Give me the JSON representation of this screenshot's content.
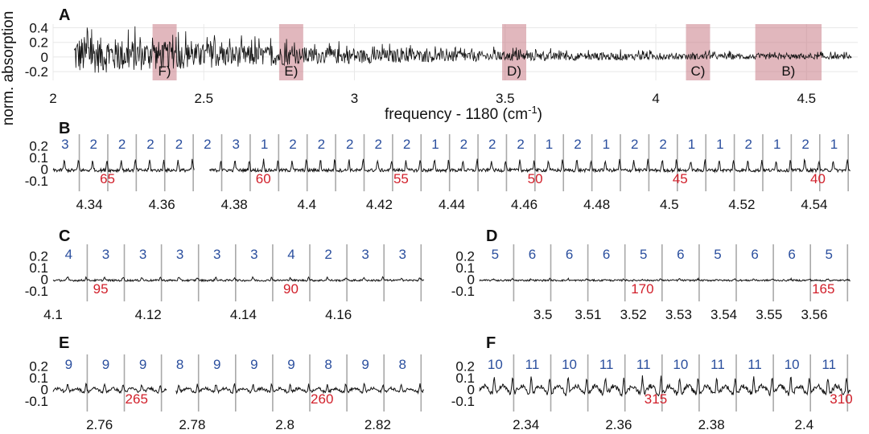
{
  "chart_data": [
    {
      "id": "A",
      "type": "line",
      "panel_label": "A",
      "xlabel": "frequency - 1180 (cm",
      "xlabel_sup": "-1",
      "xlabel_end": ")",
      "ylabel": "norm. absorption",
      "xlim": [
        2,
        4.67
      ],
      "ylim": [
        -0.32,
        0.45
      ],
      "xticks": [
        2,
        2.5,
        3,
        3.5,
        4,
        4.5
      ],
      "xtick_labels": [
        "2",
        "2.5",
        "3",
        "3.5",
        "4",
        "4.5"
      ],
      "yticks": [
        0.4,
        0.2,
        0,
        -0.2
      ],
      "ytick_labels": [
        "0.4",
        "0.2",
        "0",
        "-0.2"
      ],
      "spectrum": {
        "x_start": 2.07,
        "x_end": 4.65,
        "peak_amp_start": 0.33,
        "peak_amp_end": 0.03
      },
      "regions": [
        {
          "label": "F)",
          "x0": 2.33,
          "x1": 2.41
        },
        {
          "label": "E)",
          "x0": 2.75,
          "x1": 2.83
        },
        {
          "label": "D)",
          "x0": 3.49,
          "x1": 3.57
        },
        {
          "label": "C)",
          "x0": 4.1,
          "x1": 4.18
        },
        {
          "label": "B)",
          "x0": 4.33,
          "x1": 4.55
        }
      ]
    },
    {
      "id": "B",
      "type": "line",
      "panel_label": "B",
      "xlim": [
        4.33,
        4.55
      ],
      "ylim": [
        -0.15,
        0.26
      ],
      "yticks": [
        0.2,
        0.1,
        0,
        -0.1
      ],
      "ytick_labels": [
        "0.2",
        "0.1",
        "0",
        "-0.1"
      ],
      "xticks": [
        4.34,
        4.36,
        4.38,
        4.4,
        4.42,
        4.44,
        4.46,
        4.48,
        4.5,
        4.52,
        4.54
      ],
      "xtick_labels": [
        "4.34",
        "4.36",
        "4.38",
        "4.4",
        "4.42",
        "4.44",
        "4.46",
        "4.48",
        "4.5",
        "4.52",
        "4.54"
      ],
      "gap": [
        4.369,
        4.373
      ],
      "peak_labels": [
        "3",
        "2",
        "2",
        "2",
        "2",
        "2",
        "3",
        "1",
        "2",
        "2",
        "2",
        "2",
        "2",
        "1",
        "2",
        "2",
        "2",
        "1",
        "2",
        "1",
        "2",
        "2",
        "1",
        "1",
        "2",
        "1",
        "2",
        "1"
      ],
      "mode_labels": [
        {
          "text": "65",
          "x": 4.345
        },
        {
          "text": "60",
          "x": 4.388
        },
        {
          "text": "55",
          "x": 4.426
        },
        {
          "text": "50",
          "x": 4.463
        },
        {
          "text": "45",
          "x": 4.503
        },
        {
          "text": "40",
          "x": 4.541
        }
      ],
      "peak_amp": 0.09
    },
    {
      "id": "C",
      "type": "line",
      "panel_label": "C",
      "xlim": [
        4.1,
        4.178
      ],
      "ylim": [
        -0.15,
        0.26
      ],
      "yticks": [
        0.2,
        0.1,
        0,
        -0.1
      ],
      "ytick_labels": [
        "0.2",
        "0.1",
        "0",
        "-0.1"
      ],
      "xticks": [
        4.1,
        4.12,
        4.14,
        4.16
      ],
      "xtick_labels": [
        "4.1",
        "4.12",
        "4.14",
        "4.16"
      ],
      "peak_labels": [
        "4",
        "3",
        "3",
        "3",
        "3",
        "3",
        "4",
        "2",
        "3",
        "3"
      ],
      "mode_labels": [
        {
          "text": "95",
          "x": 4.11
        },
        {
          "text": "90",
          "x": 4.15
        }
      ],
      "peak_amp": 0.025
    },
    {
      "id": "D",
      "type": "line",
      "panel_label": "D",
      "xlim": [
        3.486,
        3.568
      ],
      "ylim": [
        -0.15,
        0.26
      ],
      "yticks": [
        0.2,
        0.1,
        0,
        -0.1
      ],
      "ytick_labels": [
        "0.2",
        "0.1",
        "0",
        "-0.1"
      ],
      "xticks": [
        3.5,
        3.51,
        3.52,
        3.53,
        3.54,
        3.55,
        3.56
      ],
      "xtick_labels": [
        "3.5",
        "3.51",
        "3.52",
        "3.53",
        "3.54",
        "3.55",
        "3.56"
      ],
      "peak_labels": [
        "5",
        "6",
        "6",
        "6",
        "5",
        "6",
        "5",
        "6",
        "6",
        "5"
      ],
      "mode_labels": [
        {
          "text": "170",
          "x": 3.522
        },
        {
          "text": "165",
          "x": 3.562
        }
      ],
      "peak_amp": 0.012
    },
    {
      "id": "E",
      "type": "line",
      "panel_label": "E",
      "xlim": [
        2.75,
        2.83
      ],
      "ylim": [
        -0.15,
        0.26
      ],
      "yticks": [
        0.2,
        0.1,
        0,
        -0.1
      ],
      "ytick_labels": [
        "0.2",
        "0.1",
        "0",
        "-0.1"
      ],
      "xticks": [
        2.76,
        2.78,
        2.8,
        2.82
      ],
      "xtick_labels": [
        "2.76",
        "2.78",
        "2.8",
        "2.82"
      ],
      "gap": [
        2.7745,
        2.7765
      ],
      "peak_labels": [
        "9",
        "9",
        "9",
        "8",
        "9",
        "9",
        "9",
        "8",
        "9",
        "8"
      ],
      "mode_labels": [
        {
          "text": "265",
          "x": 2.768
        },
        {
          "text": "260",
          "x": 2.808
        }
      ],
      "peak_amp": 0.07
    },
    {
      "id": "F",
      "type": "line",
      "panel_label": "F",
      "xlim": [
        2.33,
        2.41
      ],
      "ylim": [
        -0.15,
        0.26
      ],
      "yticks": [
        0.2,
        0.1,
        0,
        -0.1
      ],
      "ytick_labels": [
        "0.2",
        "0.1",
        "0",
        "-0.1"
      ],
      "xticks": [
        2.34,
        2.36,
        2.38,
        2.4
      ],
      "xtick_labels": [
        "2.34",
        "2.36",
        "2.38",
        "2.4"
      ],
      "peak_labels": [
        "10",
        "11",
        "10",
        "11",
        "11",
        "10",
        "11",
        "11",
        "10",
        "11"
      ],
      "mode_labels": [
        {
          "text": "315",
          "x": 2.368
        },
        {
          "text": "310",
          "x": 2.408
        }
      ],
      "peak_amp": 0.15
    }
  ]
}
